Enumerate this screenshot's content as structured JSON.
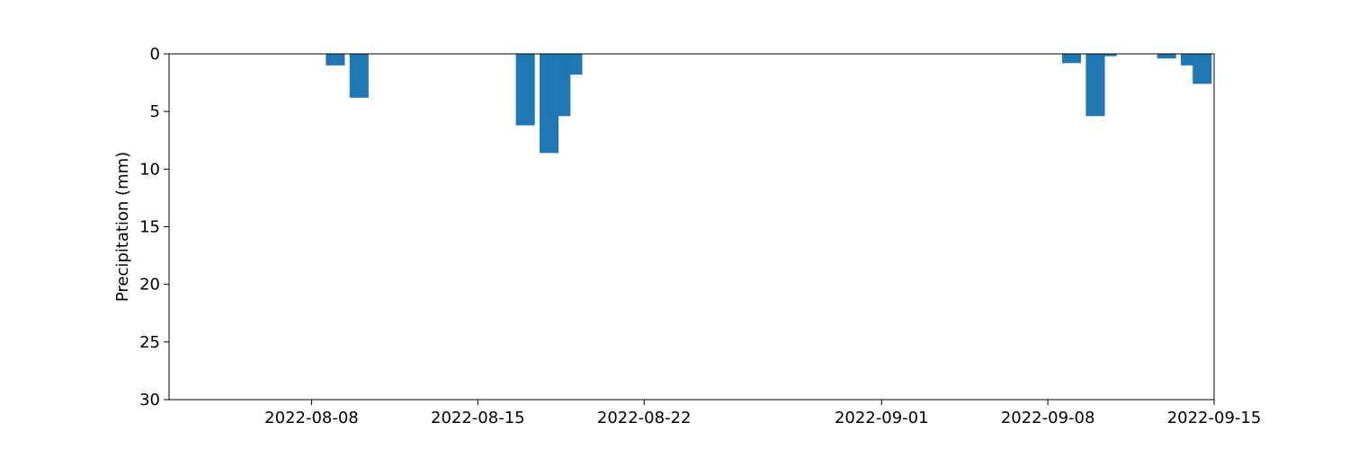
{
  "chart_data": {
    "type": "bar",
    "title": "",
    "xlabel": "",
    "ylabel": "Precipitation (mm)",
    "ylim": [
      0,
      30
    ],
    "y_inverted": true,
    "yticks": [
      0,
      5,
      10,
      15,
      20,
      25,
      30
    ],
    "xlim": [
      "2022-08-02",
      "2022-09-15"
    ],
    "xticks": [
      "2022-08-08",
      "2022-08-15",
      "2022-08-22",
      "2022-09-01",
      "2022-09-08",
      "2022-09-15"
    ],
    "grid": false,
    "color": "#1f77b4",
    "bars": [
      {
        "date": "2022-08-09",
        "value": 1.0
      },
      {
        "date": "2022-08-10",
        "value": 3.8
      },
      {
        "date": "2022-08-17",
        "value": 6.2
      },
      {
        "date": "2022-08-18",
        "value": 8.6
      },
      {
        "date": "2022-08-18.5",
        "value": 5.4
      },
      {
        "date": "2022-08-19",
        "value": 1.8
      },
      {
        "date": "2022-09-09",
        "value": 0.8
      },
      {
        "date": "2022-09-10",
        "value": 5.4
      },
      {
        "date": "2022-09-10.5",
        "value": 0.2
      },
      {
        "date": "2022-09-13",
        "value": 0.4
      },
      {
        "date": "2022-09-14",
        "value": 1.0
      },
      {
        "date": "2022-09-14.5",
        "value": 2.6
      }
    ]
  }
}
